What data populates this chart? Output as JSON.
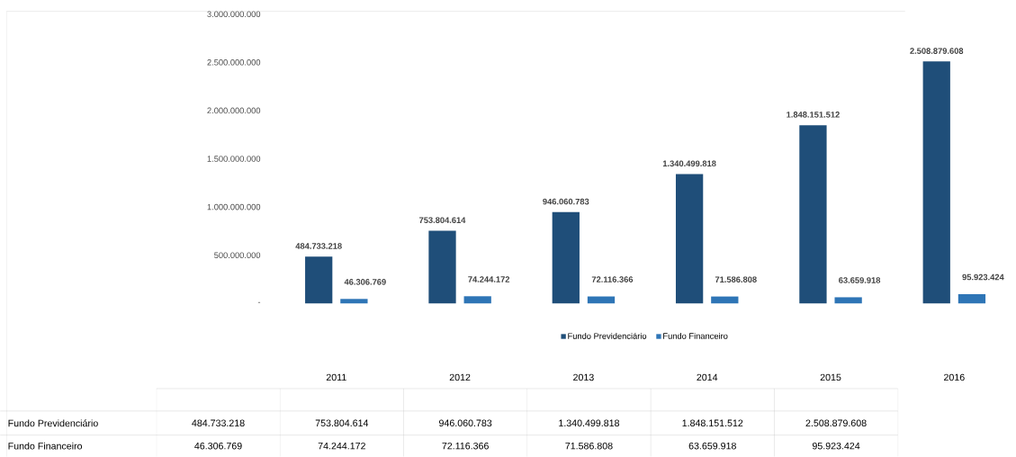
{
  "chart_data": {
    "type": "bar",
    "categories": [
      "2011",
      "2012",
      "2013",
      "2014",
      "2015",
      "2016"
    ],
    "series": [
      {
        "name": "Fundo Previdenciário",
        "color": "#1f4e79",
        "values": [
          484733218,
          753804614,
          946060783,
          1340499818,
          1848151512,
          2508879608
        ],
        "value_labels": [
          "484.733.218",
          "753.804.614",
          "946.060.783",
          "1.340.499.818",
          "1.848.151.512",
          "2.508.879.608"
        ]
      },
      {
        "name": "Fundo Financeiro",
        "color": "#2e75b6",
        "values": [
          46306769,
          74244172,
          72116366,
          71586808,
          63659918,
          95923424
        ],
        "value_labels": [
          "46.306.769",
          "74.244.172",
          "72.116.366",
          "71.586.808",
          "63.659.918",
          "95.923.424"
        ]
      }
    ],
    "ylim": [
      0,
      3000000000
    ],
    "yticks": [
      {
        "value": 0,
        "label": "-"
      },
      {
        "value": 500000000,
        "label": "500.000.000"
      },
      {
        "value": 1000000000,
        "label": "1.000.000.000"
      },
      {
        "value": 1500000000,
        "label": "1.500.000.000"
      },
      {
        "value": 2000000000,
        "label": "2.000.000.000"
      },
      {
        "value": 2500000000,
        "label": "2.500.000.000"
      },
      {
        "value": 3000000000,
        "label": "3.000.000.000"
      }
    ],
    "legend": "bottom"
  }
}
